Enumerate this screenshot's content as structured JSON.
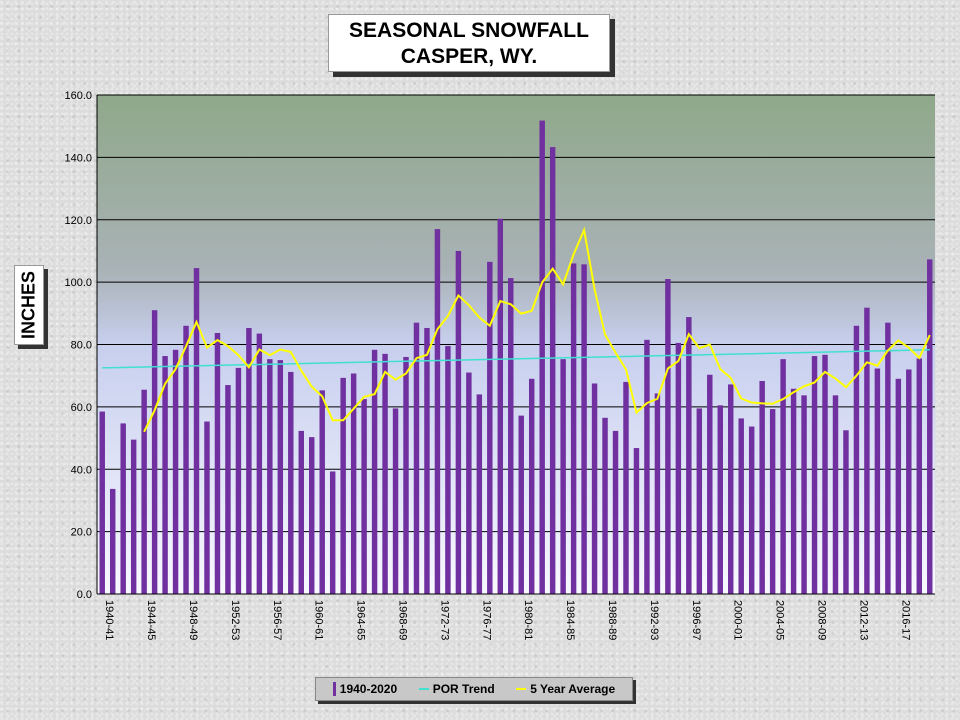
{
  "chart_data": {
    "type": "bar",
    "title_line1": "SEASONAL SNOWFALL",
    "title_line2": "CASPER, WY.",
    "ylabel": "INCHES",
    "ylim": [
      0,
      160
    ],
    "yticks": [
      "0.0",
      "20.0",
      "40.0",
      "60.0",
      "80.0",
      "100.0",
      "120.0",
      "140.0",
      "160.0"
    ],
    "x_tick_labels": [
      "1940-41",
      "1944-45",
      "1948-49",
      "1952-53",
      "1956-57",
      "1960-61",
      "1964-65",
      "1968-69",
      "1972-73",
      "1976-77",
      "1980-81",
      "1984-85",
      "1988-89",
      "1992-93",
      "1996-97",
      "2000-01",
      "2004-05",
      "2008-09",
      "2012-13",
      "2016-17"
    ],
    "categories": [
      "1940-41",
      "1941-42",
      "1942-43",
      "1943-44",
      "1944-45",
      "1945-46",
      "1946-47",
      "1947-48",
      "1948-49",
      "1949-50",
      "1950-51",
      "1951-52",
      "1952-53",
      "1953-54",
      "1954-55",
      "1955-56",
      "1956-57",
      "1957-58",
      "1958-59",
      "1959-60",
      "1960-61",
      "1961-62",
      "1962-63",
      "1963-64",
      "1964-65",
      "1965-66",
      "1966-67",
      "1967-68",
      "1968-69",
      "1969-70",
      "1970-71",
      "1971-72",
      "1972-73",
      "1973-74",
      "1974-75",
      "1975-76",
      "1976-77",
      "1977-78",
      "1978-79",
      "1979-80",
      "1980-81",
      "1981-82",
      "1982-83",
      "1983-84",
      "1984-85",
      "1985-86",
      "1986-87",
      "1987-88",
      "1988-89",
      "1989-90",
      "1990-91",
      "1991-92",
      "1992-93",
      "1993-94",
      "1994-95",
      "1995-96",
      "1996-97",
      "1997-98",
      "1998-99",
      "1999-00",
      "2000-01",
      "2001-02",
      "2002-03",
      "2003-04",
      "2004-05",
      "2005-06",
      "2006-07",
      "2007-08",
      "2008-09",
      "2009-10",
      "2010-11",
      "2011-12",
      "2012-13",
      "2013-14",
      "2014-15",
      "2015-16",
      "2016-17",
      "2017-18",
      "2018-19",
      "2019-20"
    ],
    "series": [
      {
        "name": "1940-2020",
        "color": "#7030a0",
        "values": [
          58.5,
          33.7,
          54.7,
          49.5,
          65.5,
          91.0,
          76.3,
          78.3,
          86.0,
          104.5,
          55.3,
          83.7,
          67.0,
          72.5,
          85.3,
          83.5,
          75.3,
          75.0,
          71.2,
          52.3,
          50.3,
          65.3,
          39.3,
          69.3,
          70.7,
          62.5,
          78.3,
          77.0,
          59.5,
          76.0,
          87.0,
          85.3,
          117.0,
          79.5,
          110.0,
          71.0,
          64.0,
          106.5,
          120.3,
          101.3,
          57.2,
          69.0,
          151.8,
          143.3,
          75.3,
          106.0,
          105.7,
          67.5,
          56.5,
          52.3,
          68.0,
          46.8,
          81.5,
          64.3,
          101.0,
          80.5,
          88.8,
          59.5,
          70.3,
          60.5,
          67.2,
          56.3,
          53.7,
          68.3,
          59.3,
          75.3,
          65.8,
          63.7,
          76.3,
          76.7,
          63.7,
          52.5,
          86.0,
          91.8,
          72.3,
          87.0,
          69.0,
          72.0,
          75.5,
          107.3
        ]
      },
      {
        "name": "POR Trend",
        "color": "#40e0d0",
        "start": 72.5,
        "end": 78.3
      },
      {
        "name": "5 Year Average",
        "color": "#ffff00",
        "values": [
          null,
          null,
          null,
          null,
          52.0,
          58.9,
          67.4,
          72.1,
          79.4,
          87.2,
          79.0,
          81.4,
          79.5,
          76.6,
          72.7,
          78.4,
          76.6,
          78.4,
          77.6,
          71.6,
          66.5,
          63.4,
          55.7,
          55.7,
          59.4,
          63.2,
          64.1,
          71.2,
          68.7,
          70.7,
          75.6,
          76.7,
          84.9,
          89.1,
          95.7,
          92.6,
          88.7,
          86.0,
          93.9,
          92.9,
          89.9,
          90.8,
          99.9,
          104.3,
          99.3,
          108.9,
          116.7,
          97.7,
          83.2,
          77.4,
          72.0,
          58.2,
          61.2,
          62.6,
          72.3,
          74.7,
          83.3,
          78.8,
          80.0,
          72.1,
          69.3,
          62.7,
          61.4,
          61.1,
          61.0,
          62.5,
          64.7,
          66.6,
          67.8,
          71.2,
          69.1,
          66.3,
          70.0,
          74.3,
          73.2,
          78.1,
          81.3,
          79.0,
          75.7,
          83.0
        ]
      }
    ],
    "legend": {
      "position": "bottom"
    },
    "grid": true
  }
}
